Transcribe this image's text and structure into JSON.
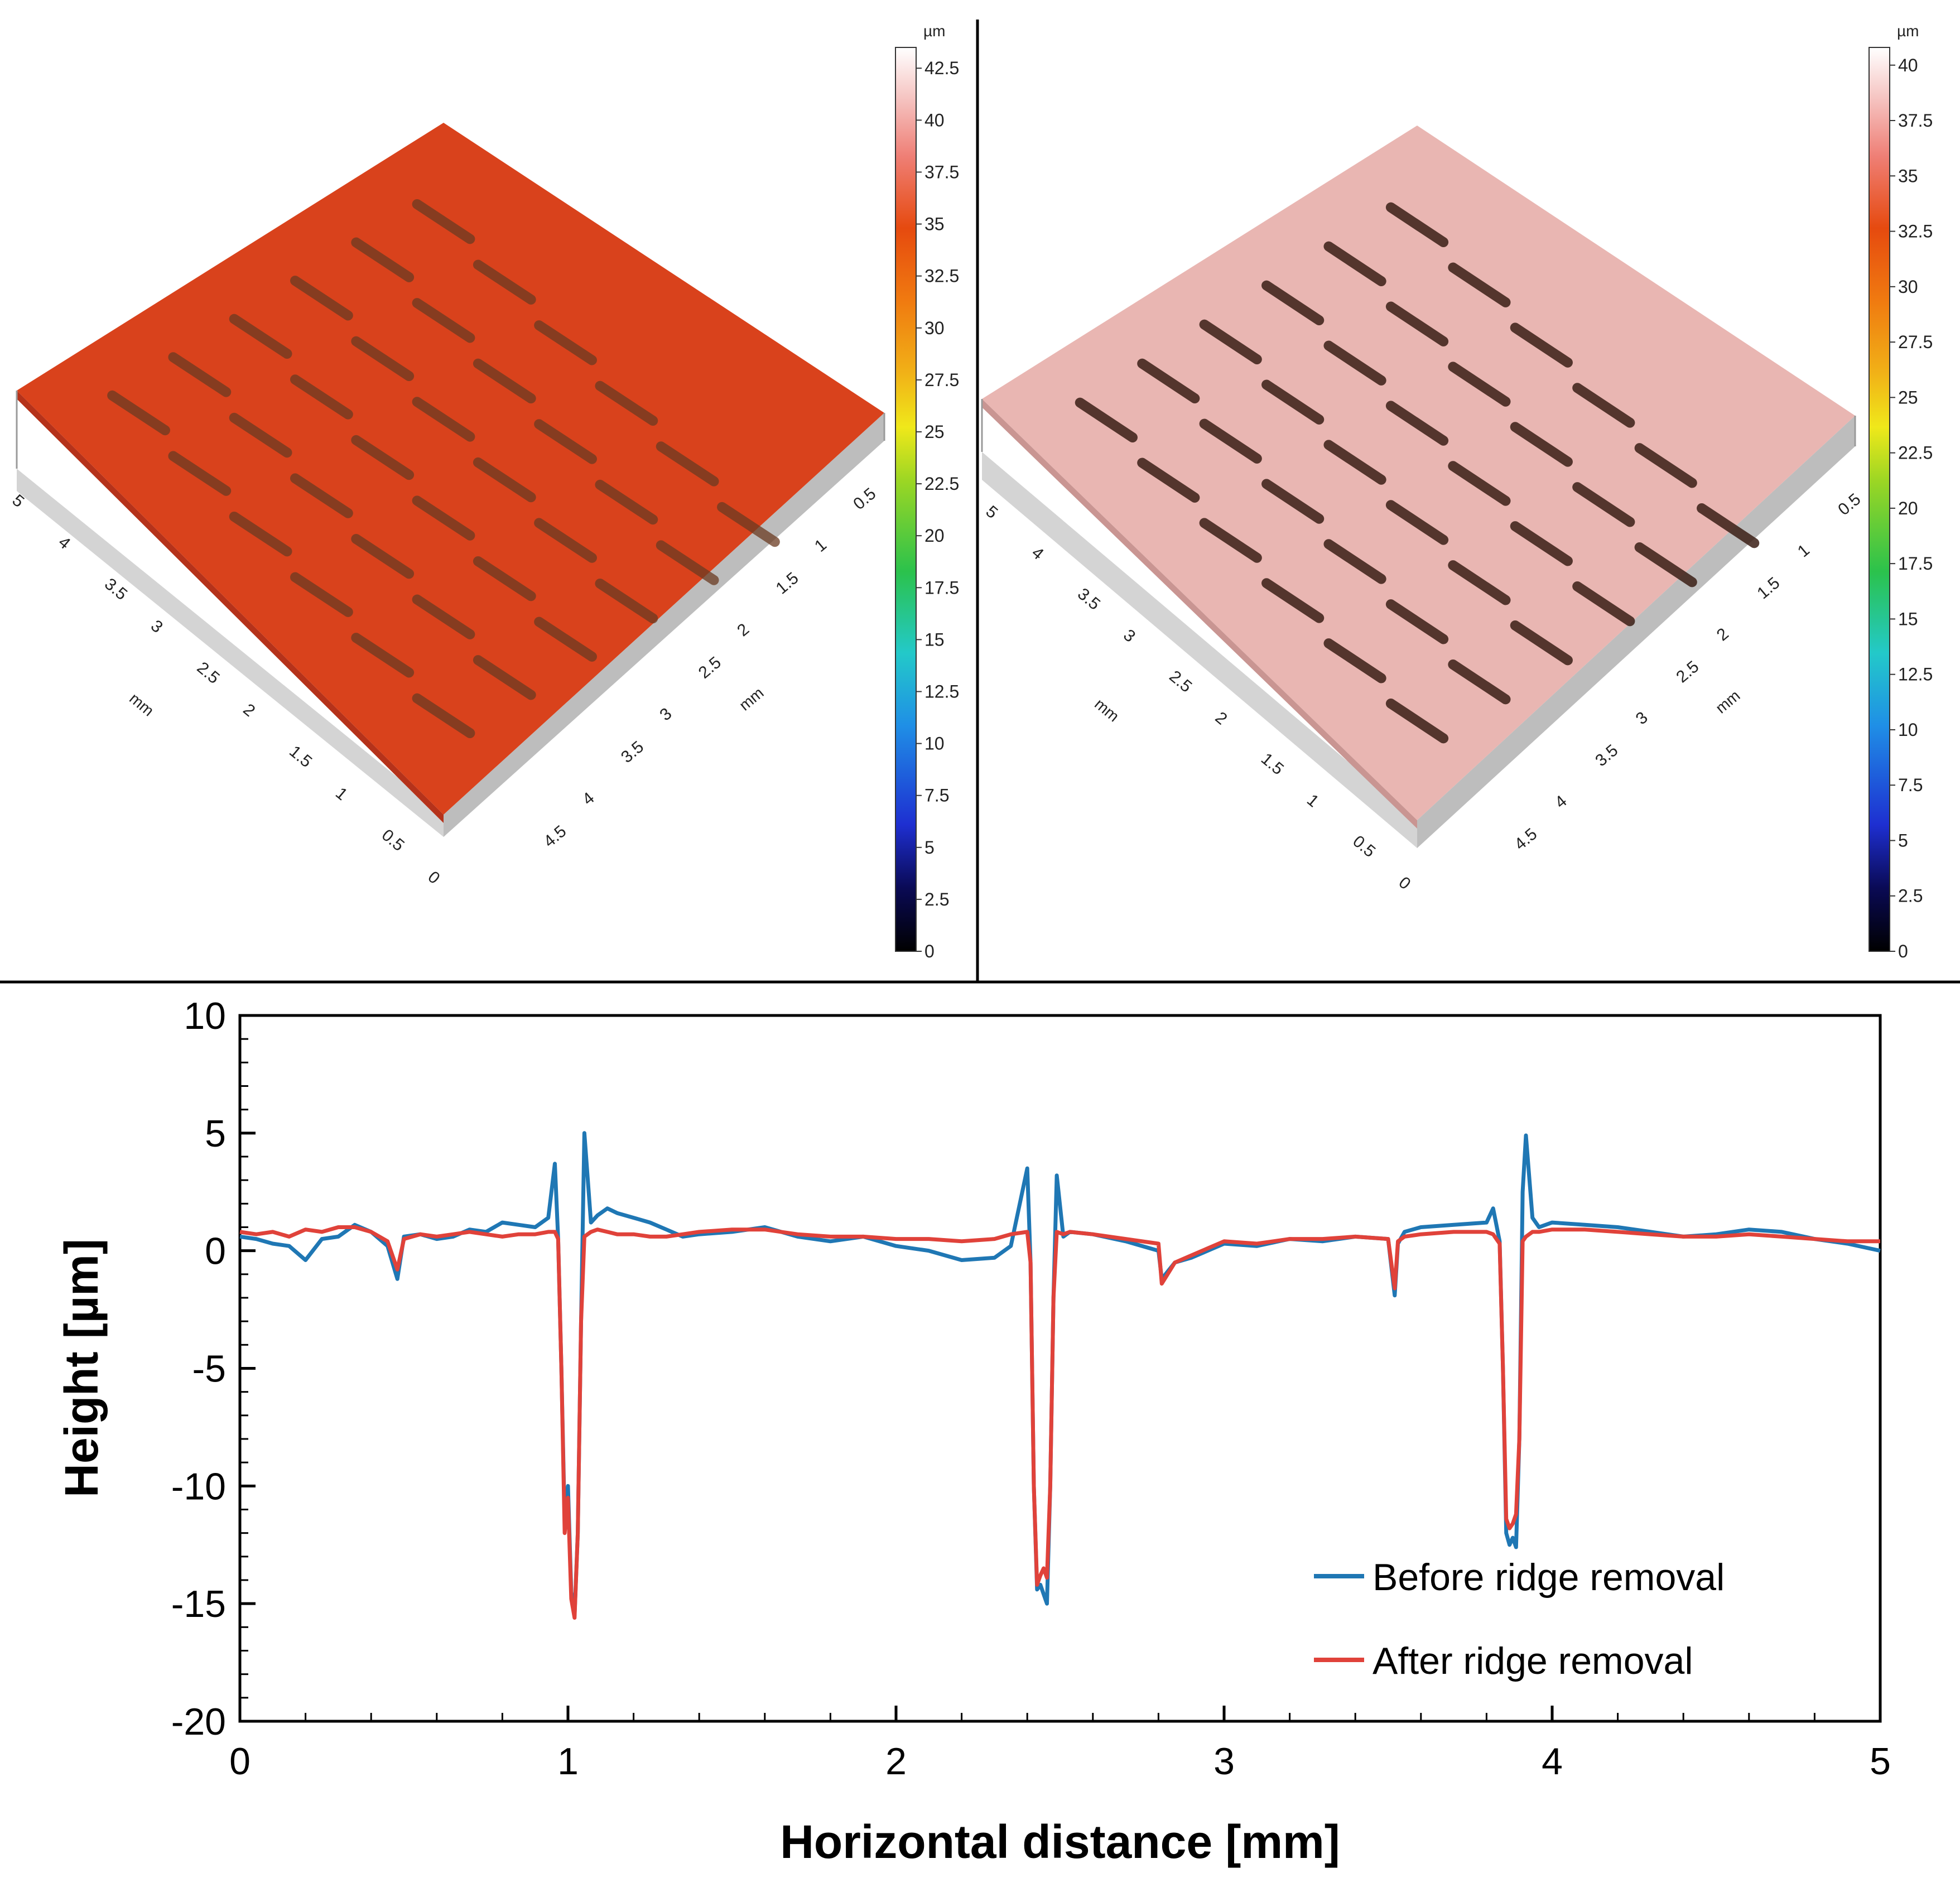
{
  "figure": {
    "left_panel": {
      "colorbar": {
        "unit": "µm",
        "ticks": [
          "0",
          "2.5",
          "5",
          "7.5",
          "10",
          "12.5",
          "15",
          "17.5",
          "20",
          "22.5",
          "25",
          "27.5",
          "30",
          "32.5",
          "35",
          "37.5",
          "40",
          "42.5"
        ],
        "range": [
          0,
          43.5
        ]
      },
      "axis_unit_left": "mm",
      "axis_unit_right": "mm",
      "axis_ticks_left": [
        "0",
        "0.5",
        "1",
        "1.5",
        "2",
        "2.5",
        "3",
        "3.5",
        "4",
        "5"
      ],
      "axis_ticks_right": [
        "4.5",
        "4",
        "3.5",
        "3",
        "2.5",
        "2",
        "1.5",
        "1",
        "0.5"
      ],
      "surface_color": "#d9421c"
    },
    "right_panel": {
      "colorbar": {
        "unit": "µm",
        "ticks": [
          "0",
          "2.5",
          "5",
          "7.5",
          "10",
          "12.5",
          "15",
          "17.5",
          "20",
          "22.5",
          "25",
          "27.5",
          "30",
          "32.5",
          "35",
          "37.5",
          "40"
        ],
        "range": [
          0,
          40.8
        ]
      },
      "axis_unit_left": "mm",
      "axis_unit_right": "mm",
      "axis_ticks_left": [
        "0",
        "0.5",
        "1",
        "1.5",
        "2",
        "2.5",
        "3",
        "3.5",
        "4",
        "5"
      ],
      "axis_ticks_right": [
        "4.5",
        "4",
        "3.5",
        "3",
        "2.5",
        "2",
        "1.5",
        "1",
        "0.5"
      ],
      "surface_color": "#e9b6b2"
    }
  },
  "chart_data": {
    "type": "line",
    "xlabel": "Horizontal distance [mm]",
    "ylabel": "Height [µm]",
    "xlim": [
      0,
      5
    ],
    "ylim": [
      -20,
      10
    ],
    "xticks": [
      "0",
      "1",
      "2",
      "3",
      "4",
      "5"
    ],
    "yticks": [
      "10",
      "5",
      "0",
      "-5",
      "-10",
      "-15",
      "-20"
    ],
    "legend_position": "bottom-right",
    "series": [
      {
        "name": "Before ridge removal",
        "color": "#1f77b4",
        "x": [
          0,
          0.05,
          0.1,
          0.15,
          0.2,
          0.25,
          0.3,
          0.35,
          0.4,
          0.45,
          0.48,
          0.5,
          0.55,
          0.6,
          0.65,
          0.7,
          0.75,
          0.8,
          0.85,
          0.9,
          0.94,
          0.96,
          0.97,
          0.98,
          0.99,
          1.0,
          1.01,
          1.02,
          1.03,
          1.04,
          1.05,
          1.07,
          1.09,
          1.12,
          1.15,
          1.2,
          1.25,
          1.3,
          1.35,
          1.4,
          1.5,
          1.6,
          1.7,
          1.8,
          1.9,
          2.0,
          2.1,
          2.2,
          2.3,
          2.35,
          2.4,
          2.41,
          2.42,
          2.43,
          2.44,
          2.45,
          2.46,
          2.47,
          2.48,
          2.49,
          2.51,
          2.53,
          2.6,
          2.7,
          2.8,
          2.81,
          2.85,
          2.9,
          3.0,
          3.1,
          3.2,
          3.3,
          3.4,
          3.5,
          3.52,
          3.53,
          3.55,
          3.6,
          3.7,
          3.8,
          3.82,
          3.84,
          3.85,
          3.86,
          3.87,
          3.88,
          3.89,
          3.9,
          3.91,
          3.92,
          3.94,
          3.96,
          4.0,
          4.1,
          4.2,
          4.3,
          4.4,
          4.5,
          4.6,
          4.7,
          4.8,
          4.9,
          5.0
        ],
        "y": [
          0.6,
          0.5,
          0.3,
          0.2,
          -0.4,
          0.5,
          0.6,
          1.1,
          0.8,
          0.2,
          -1.2,
          0.6,
          0.7,
          0.5,
          0.6,
          0.9,
          0.8,
          1.2,
          1.1,
          1.0,
          1.4,
          3.7,
          0.5,
          -5,
          -11.5,
          -10,
          -14.5,
          -15.5,
          -12,
          -3,
          5.0,
          1.2,
          1.5,
          1.8,
          1.6,
          1.4,
          1.2,
          0.9,
          0.6,
          0.7,
          0.8,
          1.0,
          0.6,
          0.4,
          0.6,
          0.2,
          0.0,
          -0.4,
          -0.3,
          0.2,
          3.5,
          -0.5,
          -10,
          -14.4,
          -14.2,
          -14.6,
          -15.0,
          -10,
          -2,
          3.2,
          0.6,
          0.8,
          0.7,
          0.4,
          0.0,
          -1.2,
          -0.5,
          -0.3,
          0.3,
          0.2,
          0.5,
          0.4,
          0.6,
          0.5,
          -1.9,
          0.3,
          0.8,
          1.0,
          1.1,
          1.2,
          1.8,
          0.4,
          -5,
          -12.0,
          -12.5,
          -12.2,
          -12.6,
          -8,
          2.5,
          4.9,
          1.4,
          1.0,
          1.2,
          1.1,
          1.0,
          0.8,
          0.6,
          0.7,
          0.9,
          0.8,
          0.5,
          0.3,
          0.0
        ]
      },
      {
        "name": "After ridge removal",
        "color": "#e0423a",
        "x": [
          0,
          0.05,
          0.1,
          0.15,
          0.2,
          0.25,
          0.3,
          0.35,
          0.4,
          0.45,
          0.48,
          0.5,
          0.55,
          0.6,
          0.65,
          0.7,
          0.75,
          0.8,
          0.85,
          0.9,
          0.94,
          0.96,
          0.97,
          0.98,
          0.99,
          1.0,
          1.01,
          1.02,
          1.03,
          1.04,
          1.05,
          1.07,
          1.09,
          1.12,
          1.15,
          1.2,
          1.25,
          1.3,
          1.35,
          1.4,
          1.5,
          1.6,
          1.7,
          1.8,
          1.9,
          2.0,
          2.1,
          2.2,
          2.3,
          2.35,
          2.4,
          2.41,
          2.42,
          2.43,
          2.44,
          2.45,
          2.46,
          2.47,
          2.48,
          2.49,
          2.51,
          2.53,
          2.6,
          2.7,
          2.8,
          2.81,
          2.85,
          2.9,
          3.0,
          3.1,
          3.2,
          3.3,
          3.4,
          3.5,
          3.52,
          3.53,
          3.55,
          3.6,
          3.7,
          3.8,
          3.82,
          3.84,
          3.85,
          3.86,
          3.87,
          3.88,
          3.89,
          3.9,
          3.91,
          3.92,
          3.94,
          3.96,
          4.0,
          4.1,
          4.2,
          4.3,
          4.4,
          4.5,
          4.6,
          4.7,
          4.8,
          4.9,
          5.0
        ],
        "y": [
          0.8,
          0.7,
          0.8,
          0.6,
          0.9,
          0.8,
          1.0,
          1.0,
          0.8,
          0.4,
          -0.8,
          0.5,
          0.7,
          0.6,
          0.7,
          0.8,
          0.7,
          0.6,
          0.7,
          0.7,
          0.8,
          0.8,
          0.5,
          -5,
          -12.0,
          -10.5,
          -14.8,
          -15.6,
          -12,
          -3,
          0.6,
          0.8,
          0.9,
          0.8,
          0.7,
          0.7,
          0.6,
          0.6,
          0.7,
          0.8,
          0.9,
          0.9,
          0.7,
          0.6,
          0.6,
          0.5,
          0.5,
          0.4,
          0.5,
          0.7,
          0.8,
          -0.5,
          -10,
          -14.2,
          -13.8,
          -13.5,
          -13.9,
          -10,
          -2,
          0.8,
          0.7,
          0.8,
          0.7,
          0.5,
          0.3,
          -1.4,
          -0.5,
          -0.2,
          0.4,
          0.3,
          0.5,
          0.5,
          0.6,
          0.5,
          -1.6,
          0.4,
          0.6,
          0.7,
          0.8,
          0.8,
          0.7,
          0.3,
          -5,
          -11.4,
          -11.8,
          -11.6,
          -11.2,
          -8,
          0.4,
          0.6,
          0.8,
          0.8,
          0.9,
          0.9,
          0.8,
          0.7,
          0.6,
          0.6,
          0.7,
          0.6,
          0.5,
          0.4,
          0.4
        ]
      }
    ]
  }
}
